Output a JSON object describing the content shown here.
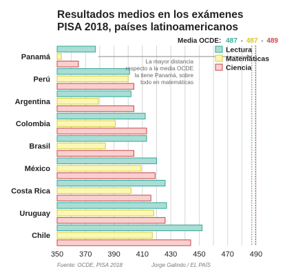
{
  "chart_data": {
    "type": "bar",
    "orientation": "horizontal",
    "title_line1": "Resultados medios en los exámenes",
    "title_line2": "PISA 2018, países latinoamericanos",
    "categories": [
      "Panamá",
      "Perú",
      "Argentina",
      "Colombia",
      "Brasil",
      "México",
      "Costa Rica",
      "Uruguay",
      "Chile"
    ],
    "series": [
      {
        "name": "Lectura",
        "color": "#a9ddd5",
        "stroke": "#33a896",
        "values": [
          377,
          401,
          402,
          412,
          413,
          420,
          426,
          427,
          452
        ]
      },
      {
        "name": "Matemáticas",
        "color": "#fbf7b4",
        "stroke": "#d8cc3a",
        "values": [
          353,
          400,
          379,
          391,
          384,
          409,
          402,
          418,
          417
        ]
      },
      {
        "name": "Ciencia",
        "color": "#f9d0d0",
        "stroke": "#c94444",
        "values": [
          365,
          404,
          404,
          413,
          404,
          419,
          416,
          426,
          444
        ]
      }
    ],
    "xlim": [
      350,
      500
    ],
    "xticks": [
      350,
      370,
      390,
      410,
      430,
      450,
      470,
      490
    ],
    "grid": true,
    "legend_position": "top-right",
    "reference": {
      "label": "Media OCDE:",
      "values": [
        "487",
        "487",
        "489"
      ],
      "separator": "-",
      "line_values": [
        487,
        489
      ]
    },
    "annotation": [
      "La mayor distancia",
      "respecto a la media OCDE",
      "la tiene Panamá, sobre",
      "todo en matemáticas"
    ]
  },
  "footer": {
    "source": "Fuente: OCDE, PISA 2018",
    "credit": "Jorge Galindo / EL PAÍS"
  }
}
